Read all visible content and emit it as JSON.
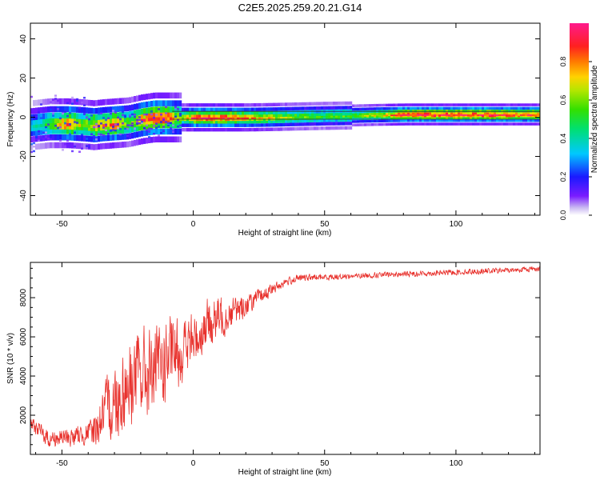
{
  "title": "C2E5.2025.259.20.21.G14",
  "chart_data": [
    {
      "type": "heatmap",
      "xlabel": "Height of straight line (km)",
      "ylabel": "Frequency (Hz)",
      "xlim": [
        -62,
        132
      ],
      "ylim": [
        -50,
        48
      ],
      "xticks": [
        "-50",
        "0",
        "50",
        "100"
      ],
      "xtick_values": [
        -50,
        0,
        50,
        100
      ],
      "yticks": [
        "40",
        "20",
        "0",
        "-20",
        "-40"
      ],
      "ytick_values": [
        40,
        20,
        0,
        -20,
        -40
      ],
      "colorbar": {
        "label": "Normalized spectral amplitude",
        "range": [
          0,
          1
        ],
        "ticks": [
          "0.0",
          "0.2",
          "0.4",
          "0.6",
          "0.8"
        ],
        "tick_values": [
          0,
          0.2,
          0.4,
          0.6,
          0.8
        ],
        "colormap": "rainbow (purple-blue-cyan-green-yellow-orange-red-pink)"
      },
      "ridge": {
        "x": [
          -62,
          -55,
          -48,
          -42,
          -38,
          -35,
          -30,
          -25,
          -20,
          -15,
          -10,
          -5,
          0,
          10,
          20,
          30,
          40,
          50,
          60,
          70,
          80,
          90,
          100,
          110,
          120,
          132
        ],
        "freq": [
          -4,
          -3,
          -3,
          -3.5,
          -4,
          -3.5,
          -3,
          -2.5,
          -1,
          0,
          0,
          0,
          0,
          0,
          0,
          0.2,
          0.5,
          0.8,
          1,
          1.3,
          1.5,
          1.5,
          1.5,
          1.5,
          1.5,
          1.5
        ],
        "peak_amplitude": [
          0.35,
          0.55,
          0.9,
          0.6,
          0.8,
          0.75,
          0.9,
          0.6,
          0.85,
          0.95,
          0.9,
          0.6,
          0.95,
          0.95,
          0.8,
          0.7,
          0.6,
          0.55,
          0.6,
          0.7,
          0.95,
          0.95,
          0.95,
          0.95,
          0.9,
          0.9
        ]
      },
      "band_line_freq": [
        -1,
        3
      ]
    },
    {
      "type": "line",
      "xlabel": "Height of straight line (km)",
      "ylabel": "SNR (10 * v/v)",
      "xlim": [
        -62,
        132
      ],
      "ylim": [
        0,
        9800
      ],
      "xticks": [
        "-50",
        "0",
        "50",
        "100"
      ],
      "xtick_values": [
        -50,
        0,
        50,
        100
      ],
      "yticks": [
        "2000",
        "4000",
        "6000",
        "8000"
      ],
      "ytick_values": [
        2000,
        4000,
        6000,
        8000
      ],
      "color": "#e8312c",
      "trend_x": [
        -62,
        -55,
        -45,
        -38,
        -30,
        -22,
        -15,
        -10,
        -5,
        0,
        5,
        10,
        15,
        20,
        25,
        30,
        35,
        40,
        50,
        60,
        70,
        80,
        90,
        100,
        110,
        120,
        132
      ],
      "trend_y": [
        1600,
        800,
        900,
        1200,
        2800,
        4000,
        4200,
        4800,
        5200,
        5800,
        6600,
        7000,
        7300,
        7600,
        8000,
        8400,
        8800,
        9000,
        9050,
        9100,
        9150,
        9200,
        9250,
        9300,
        9350,
        9400,
        9500
      ],
      "noise_amp_x": [
        -62,
        -40,
        -30,
        -20,
        -10,
        0,
        10,
        20,
        30,
        40,
        60,
        132
      ],
      "noise_amp_y": [
        500,
        700,
        2600,
        3000,
        2600,
        1800,
        1400,
        700,
        350,
        220,
        180,
        180
      ]
    }
  ]
}
